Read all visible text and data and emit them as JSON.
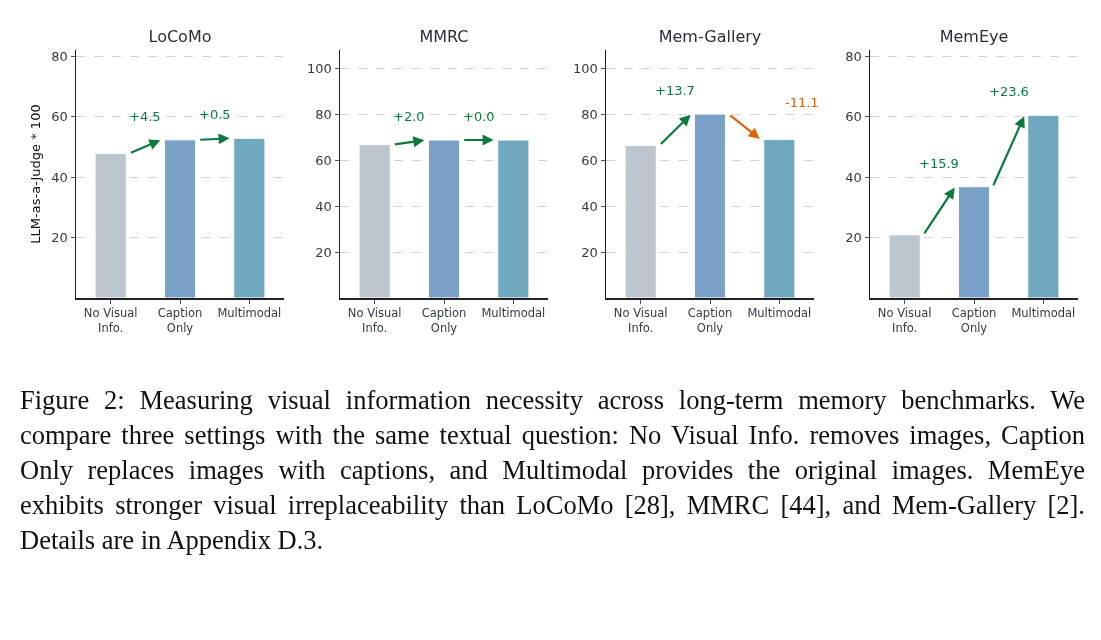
{
  "chart_data": [
    {
      "type": "bar",
      "title": "LoCoMo",
      "ylabel": "LLM-as-a-Judge * 100",
      "categories": [
        "No Visual Info.",
        "Caption Only",
        "Multimodal"
      ],
      "values": [
        47.8,
        52.3,
        52.8
      ],
      "colors": [
        "#bcc6cf",
        "#7aa2c8",
        "#6fa8bf"
      ],
      "ylim": [
        0,
        82
      ],
      "yticks": [
        20,
        40,
        60,
        80
      ],
      "grid": "y",
      "annotations": [
        {
          "text": "+4.5",
          "x": "Caption Only",
          "y": 52.3
        },
        {
          "text": "+0.5",
          "x": "Multimodal",
          "y": 52.8
        },
        "Figure 2: Measuring visual information necessity across long-term memory benchmarks. We compare three settings with the same textual question: No Visual Info. removes images, Caption Only replaces images with captions, and Multimodal provides the original images. MemEye exhibits stronger visual irreplaceability than LoCoMo [28], MMRC [44], and Mem-Gallery [2]. Details are in Appendix D.3."
      ]
    },
    {
      "type": "bar",
      "title": "MMRC",
      "categories": [
        "No Visual Info.",
        "Caption Only",
        "Multimodal"
      ],
      "values": [
        66.8,
        68.8,
        68.8
      ],
      "colors": [
        "#bcc6cf",
        "#7aa2c8",
        "#6fa8bf"
      ],
      "ylim": [
        0,
        108
      ],
      "yticks": [
        20,
        40,
        60,
        80,
        100
      ],
      "grid": "y",
      "annotations": [
        {
          "text": "+2.0",
          "x": "Caption Only",
          "y": 68.8
        },
        {
          "text": "+0.0",
          "x": "Multimodal",
          "y": 68.8
        }
      ]
    },
    {
      "type": "bar",
      "title": "Mem-Gallery",
      "categories": [
        "No Visual Info.",
        "Caption Only",
        "Multimodal"
      ],
      "values": [
        66.4,
        80.1,
        69.0
      ],
      "colors": [
        "#bcc6cf",
        "#7aa2c8",
        "#6fa8bf"
      ],
      "ylim": [
        0,
        108
      ],
      "yticks": [
        20,
        40,
        60,
        80,
        100
      ],
      "grid": "y",
      "annotations": [
        {
          "text": "+13.7",
          "x": "Caption Only",
          "y": 80.1
        },
        {
          "text": "-11.1",
          "x": "Multimodal",
          "y": 69.0
        }
      ]
    },
    {
      "type": "bar",
      "title": "MemEye",
      "categories": [
        "No Visual Info.",
        "Caption Only",
        "Multimodal"
      ],
      "values": [
        20.9,
        36.8,
        60.4
      ],
      "colors": [
        "#bcc6cf",
        "#7aa2c8",
        "#6fa8bf"
      ],
      "ylim": [
        0,
        82
      ],
      "yticks": [
        20,
        40,
        60,
        80
      ],
      "grid": "y",
      "annotations": [
        {
          "text": "+15.9",
          "x": "Caption Only",
          "y": 36.8
        },
        {
          "text": "+23.6",
          "x": "Multimodal",
          "y": 60.4
        }
      ]
    }
  ]
}
